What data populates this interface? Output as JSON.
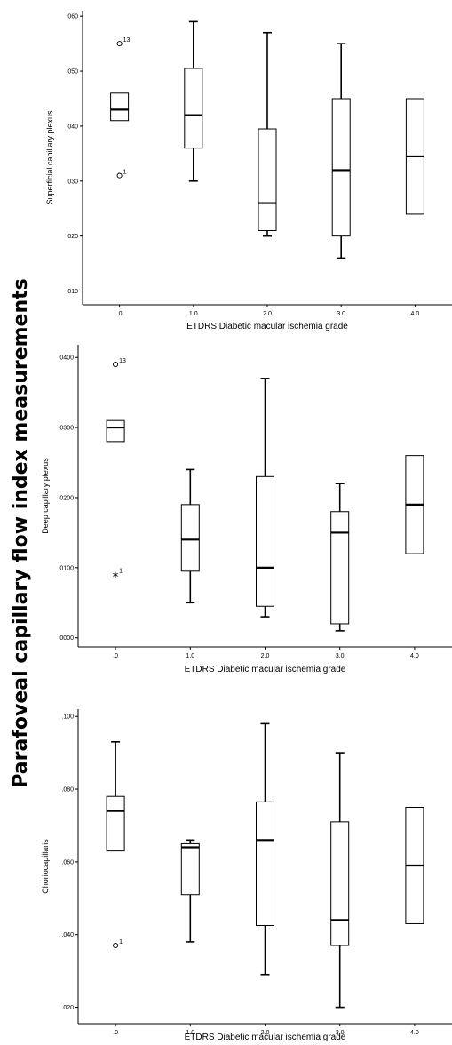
{
  "figure": {
    "main_title": "Parafoveal capillary flow index measurements"
  },
  "chart_data": [
    {
      "type": "box",
      "xlabel": "ETDRS Diabetic macular ischemia grade",
      "ylabel": "Superficial capillary plexus",
      "categories": [
        ".0",
        "1.0",
        "2.0",
        "3.0",
        "4.0"
      ],
      "yticks": [
        ".010",
        ".020",
        ".030",
        ".040",
        ".050",
        ".060"
      ],
      "ylim": [
        0.0075,
        0.061
      ],
      "boxes": [
        {
          "category": ".0",
          "whisker_low": 0.041,
          "q1": 0.041,
          "median": 0.043,
          "q3": 0.046,
          "whisker_high": 0.046
        },
        {
          "category": "1.0",
          "whisker_low": 0.03,
          "q1": 0.036,
          "median": 0.042,
          "q3": 0.0505,
          "whisker_high": 0.059
        },
        {
          "category": "2.0",
          "whisker_low": 0.02,
          "q1": 0.021,
          "median": 0.026,
          "q3": 0.0395,
          "whisker_high": 0.057
        },
        {
          "category": "3.0",
          "whisker_low": 0.016,
          "q1": 0.02,
          "median": 0.032,
          "q3": 0.045,
          "whisker_high": 0.055
        },
        {
          "category": "4.0",
          "whisker_low": 0.024,
          "q1": 0.024,
          "median": 0.0345,
          "q3": 0.045,
          "whisker_high": 0.045
        }
      ],
      "outliers": [
        {
          "category": ".0",
          "value": 0.055,
          "label": "13",
          "marker": "circle"
        },
        {
          "category": ".0",
          "value": 0.031,
          "label": "1",
          "marker": "circle"
        }
      ]
    },
    {
      "type": "box",
      "xlabel": "ETDRS Diabetic macular ischemia grade",
      "ylabel": "Deep capillary plexus",
      "categories": [
        ".0",
        "1.0",
        "2.0",
        "3.0",
        "4.0"
      ],
      "yticks": [
        ".0000",
        ".0100",
        ".0200",
        ".0300",
        ".0400"
      ],
      "ylim": [
        -0.0013,
        0.0418
      ],
      "boxes": [
        {
          "category": ".0",
          "whisker_low": 0.028,
          "q1": 0.028,
          "median": 0.03,
          "q3": 0.031,
          "whisker_high": 0.031
        },
        {
          "category": "1.0",
          "whisker_low": 0.005,
          "q1": 0.0095,
          "median": 0.014,
          "q3": 0.019,
          "whisker_high": 0.024
        },
        {
          "category": "2.0",
          "whisker_low": 0.003,
          "q1": 0.0045,
          "median": 0.01,
          "q3": 0.023,
          "whisker_high": 0.037
        },
        {
          "category": "3.0",
          "whisker_low": 0.001,
          "q1": 0.002,
          "median": 0.015,
          "q3": 0.018,
          "whisker_high": 0.022
        },
        {
          "category": "4.0",
          "whisker_low": 0.012,
          "q1": 0.012,
          "median": 0.019,
          "q3": 0.026,
          "whisker_high": 0.026
        }
      ],
      "outliers": [
        {
          "category": ".0",
          "value": 0.039,
          "label": "13",
          "marker": "circle"
        },
        {
          "category": ".0",
          "value": 0.009,
          "label": "1",
          "marker": "star"
        }
      ]
    },
    {
      "type": "box",
      "xlabel": "ETDRS Diabetic macular ischemia grade",
      "ylabel": "Choriocapillaris",
      "categories": [
        ".0",
        "1.0",
        "2.0",
        "3.0",
        "4.0"
      ],
      "yticks": [
        ".020",
        ".040",
        ".060",
        ".080",
        ".100"
      ],
      "ylim": [
        0.0155,
        0.102
      ],
      "boxes": [
        {
          "category": ".0",
          "whisker_low": 0.063,
          "q1": 0.063,
          "median": 0.074,
          "q3": 0.078,
          "whisker_high": 0.093
        },
        {
          "category": "1.0",
          "whisker_low": 0.038,
          "q1": 0.051,
          "median": 0.064,
          "q3": 0.065,
          "whisker_high": 0.066
        },
        {
          "category": "2.0",
          "whisker_low": 0.029,
          "q1": 0.0425,
          "median": 0.066,
          "q3": 0.0765,
          "whisker_high": 0.098
        },
        {
          "category": "3.0",
          "whisker_low": 0.02,
          "q1": 0.037,
          "median": 0.044,
          "q3": 0.071,
          "whisker_high": 0.09
        },
        {
          "category": "4.0",
          "whisker_low": 0.043,
          "q1": 0.043,
          "median": 0.059,
          "q3": 0.075,
          "whisker_high": 0.075
        }
      ],
      "outliers": [
        {
          "category": ".0",
          "value": 0.037,
          "label": "1",
          "marker": "circle"
        }
      ]
    }
  ]
}
